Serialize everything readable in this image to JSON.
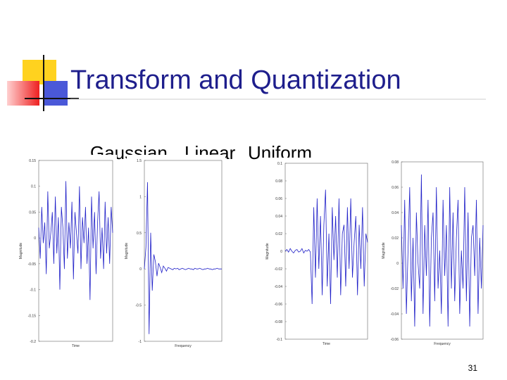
{
  "header": {
    "title": "Transform and Quantization"
  },
  "bullets": [
    "Gaussian",
    "Linear",
    "Uniform"
  ],
  "page_number": "31",
  "chart_data": [
    {
      "type": "line",
      "xlabel": "Time",
      "ylabel": "Magnitude",
      "color": "#2020c8",
      "ylim": [
        -0.2,
        0.15
      ],
      "yticks": [
        0.15,
        0.1,
        0.05,
        0,
        -0.05,
        -0.1,
        -0.15,
        -0.2
      ],
      "values": [
        0.02,
        -0.04,
        0.06,
        -0.01,
        0.03,
        -0.07,
        0.09,
        -0.02,
        0.01,
        0.05,
        -0.05,
        0.08,
        -0.03,
        0.04,
        -0.1,
        0.06,
        0.02,
        -0.06,
        0.11,
        -0.04,
        0.03,
        -0.02,
        0.07,
        -0.08,
        0.05,
        0.01,
        -0.03,
        0.1,
        -0.06,
        0.04,
        -0.01,
        0.06,
        -0.05,
        0.02,
        -0.12,
        0.08,
        -0.02,
        0.05,
        -0.07,
        0.03,
        0.09,
        -0.04,
        0.02,
        -0.06,
        0.07,
        -0.03,
        0.04,
        -0.05,
        0.06,
        0.01
      ]
    },
    {
      "type": "line",
      "xlabel": "Frequency",
      "ylabel": "Magnitude",
      "color": "#2020c8",
      "ylim": [
        -1,
        1.5
      ],
      "yticks": [
        1.5,
        1,
        0.5,
        0,
        -0.5,
        -1
      ],
      "values": [
        0,
        0.3,
        1.2,
        -0.9,
        0.5,
        -0.3,
        0.2,
        0.1,
        -0.1,
        0.08,
        0.02,
        -0.05,
        0.04,
        0.01,
        -0.03,
        0.02,
        0.01,
        0,
        -0.01,
        0.01,
        0,
        0.01,
        -0.01,
        0,
        0.01,
        0,
        -0.01,
        0,
        0.01,
        0,
        0,
        -0.01,
        0.01,
        0,
        0,
        0.01,
        0,
        -0.01,
        0,
        0,
        0.01,
        0,
        0,
        -0.01,
        0,
        0,
        0.01,
        0,
        0,
        0
      ]
    },
    {
      "type": "line",
      "xlabel": "Time",
      "ylabel": "Magnitude",
      "color": "#2020c8",
      "ylim": [
        -0.1,
        0.1
      ],
      "yticks": [
        0.1,
        0.08,
        0.06,
        0.04,
        0.02,
        0,
        -0.02,
        -0.04,
        -0.06,
        -0.08,
        -0.1
      ],
      "values": [
        0,
        0.002,
        -0.001,
        0.003,
        0,
        -0.002,
        0.001,
        0.002,
        -0.001,
        0,
        0.003,
        -0.002,
        0.001,
        0,
        0.002,
        -0.001,
        -0.06,
        0.05,
        -0.03,
        0.06,
        -0.02,
        0.04,
        -0.05,
        0.03,
        0.07,
        -0.04,
        0.02,
        -0.06,
        0.05,
        -0.01,
        0.04,
        -0.03,
        0.06,
        -0.05,
        0.02,
        0.03,
        -0.04,
        0.05,
        -0.02,
        0.06,
        -0.03,
        0.01,
        0.04,
        -0.05,
        0.03,
        -0.02,
        0.05,
        -0.04,
        0.02,
        0.01
      ]
    },
    {
      "type": "line",
      "xlabel": "Frequency",
      "ylabel": "Magnitude",
      "color": "#2020c8",
      "ylim": [
        -0.06,
        0.08
      ],
      "yticks": [
        0.08,
        0.06,
        0.04,
        0.02,
        0,
        -0.02,
        -0.04,
        -0.06
      ],
      "values": [
        0.03,
        -0.02,
        0.05,
        -0.04,
        0.01,
        0.06,
        -0.03,
        0.02,
        -0.05,
        0.04,
        0,
        -0.02,
        0.07,
        -0.04,
        0.03,
        -0.01,
        0.05,
        -0.05,
        0.02,
        0.04,
        -0.03,
        0.06,
        -0.02,
        0.01,
        -0.04,
        0.05,
        -0.01,
        0.03,
        -0.05,
        0.06,
        -0.02,
        0.04,
        -0.03,
        0.02,
        0.05,
        -0.04,
        0.01,
        -0.02,
        0.06,
        -0.03,
        0.04,
        -0.05,
        0.02,
        0.03,
        -0.01,
        0.05,
        -0.04,
        0.02,
        -0.02,
        0.03
      ]
    }
  ]
}
